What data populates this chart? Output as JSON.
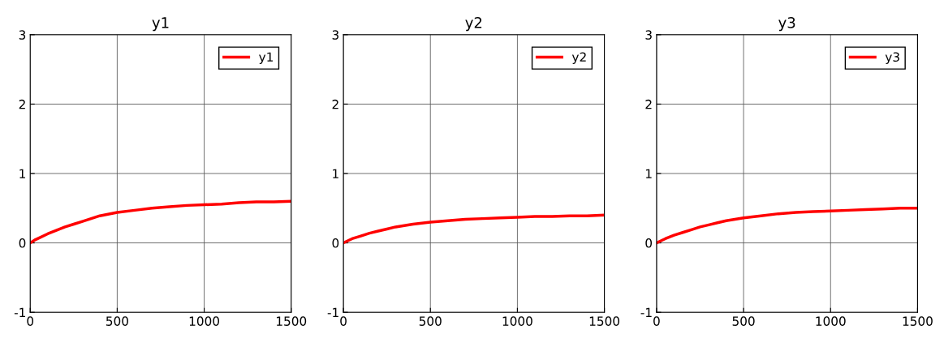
{
  "chart_data": [
    {
      "type": "line",
      "title": "y1",
      "x": [
        0,
        25,
        50,
        100,
        150,
        200,
        250,
        300,
        350,
        400,
        500,
        600,
        700,
        800,
        900,
        1000,
        1100,
        1200,
        1300,
        1400,
        1500
      ],
      "series": [
        {
          "name": "y1",
          "color": "#ff0000",
          "values": [
            0,
            0.04,
            0.07,
            0.13,
            0.18,
            0.23,
            0.27,
            0.31,
            0.35,
            0.39,
            0.44,
            0.47,
            0.5,
            0.52,
            0.54,
            0.55,
            0.56,
            0.58,
            0.59,
            0.59,
            0.6
          ]
        }
      ],
      "xlim": [
        0,
        1500
      ],
      "ylim": [
        -1,
        3
      ],
      "xticks": [
        0,
        500,
        1000,
        1500
      ],
      "yticks": [
        -1,
        0,
        1,
        2,
        3
      ],
      "grid": true,
      "legend": "top right"
    },
    {
      "type": "line",
      "title": "y2",
      "x": [
        0,
        25,
        50,
        100,
        150,
        200,
        250,
        300,
        350,
        400,
        500,
        600,
        700,
        800,
        900,
        1000,
        1100,
        1200,
        1300,
        1400,
        1500
      ],
      "series": [
        {
          "name": "y2",
          "color": "#ff0000",
          "values": [
            0,
            0.03,
            0.06,
            0.1,
            0.14,
            0.17,
            0.2,
            0.23,
            0.25,
            0.27,
            0.3,
            0.32,
            0.34,
            0.35,
            0.36,
            0.37,
            0.38,
            0.38,
            0.39,
            0.39,
            0.4
          ]
        }
      ],
      "xlim": [
        0,
        1500
      ],
      "ylim": [
        -1,
        3
      ],
      "xticks": [
        0,
        500,
        1000,
        1500
      ],
      "yticks": [
        -1,
        0,
        1,
        2,
        3
      ],
      "grid": true,
      "legend": "top right"
    },
    {
      "type": "line",
      "title": "y3",
      "x": [
        0,
        25,
        50,
        100,
        150,
        200,
        250,
        300,
        350,
        400,
        500,
        600,
        700,
        800,
        900,
        1000,
        1100,
        1200,
        1300,
        1400,
        1500
      ],
      "series": [
        {
          "name": "y3",
          "color": "#ff0000",
          "values": [
            0,
            0.03,
            0.06,
            0.11,
            0.15,
            0.19,
            0.23,
            0.26,
            0.29,
            0.32,
            0.36,
            0.39,
            0.42,
            0.44,
            0.45,
            0.46,
            0.47,
            0.48,
            0.49,
            0.5,
            0.5
          ]
        }
      ],
      "xlim": [
        0,
        1500
      ],
      "ylim": [
        -1,
        3
      ],
      "xticks": [
        0,
        500,
        1000,
        1500
      ],
      "yticks": [
        -1,
        0,
        1,
        2,
        3
      ],
      "grid": true,
      "legend": "top right"
    }
  ]
}
